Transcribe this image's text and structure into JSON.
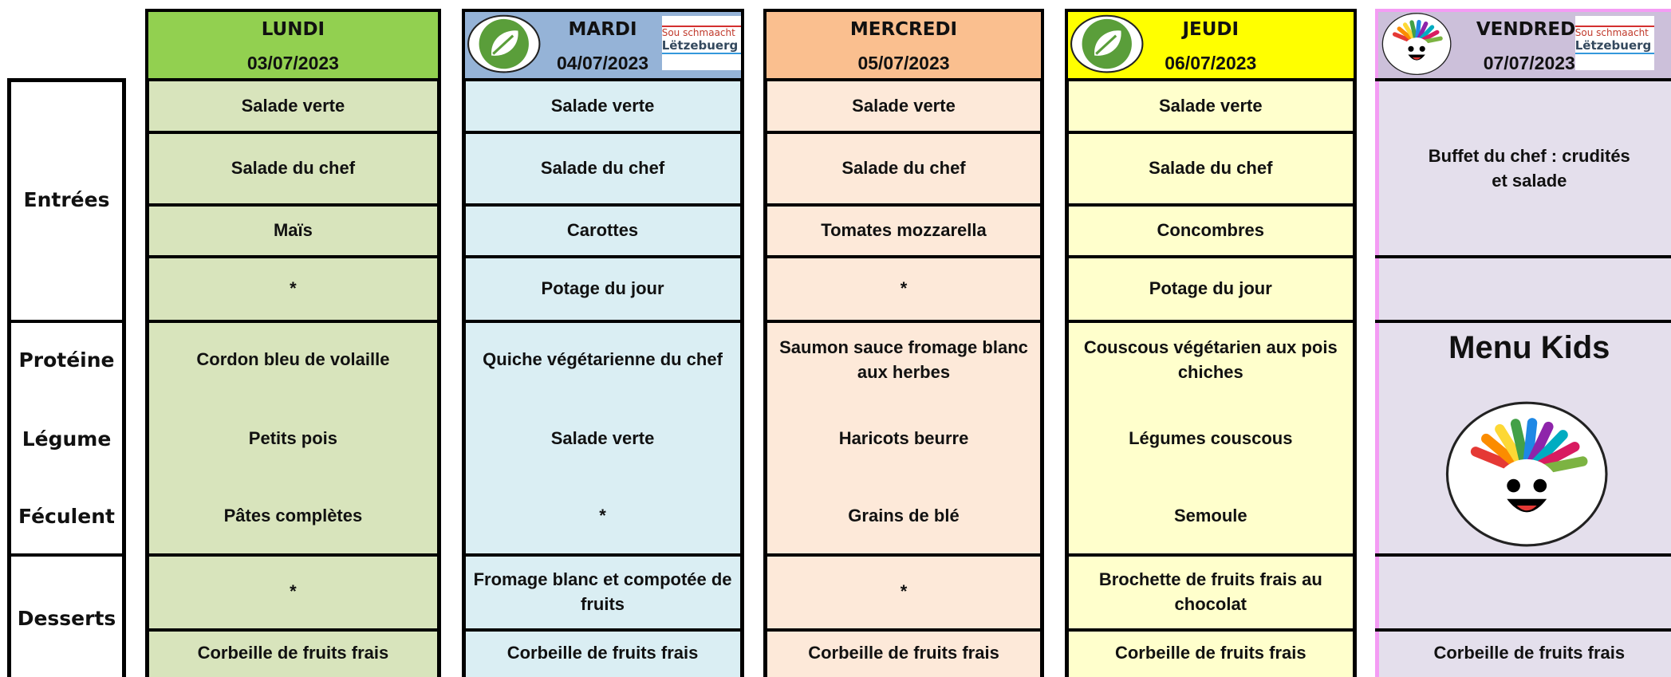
{
  "row_labels": [
    "Entrées",
    "Protéine",
    "Légume",
    "Féculent",
    "Desserts"
  ],
  "logo_text": [
    "Sou schmaacht",
    "Lëtzebuerg"
  ],
  "days": [
    {
      "name": "LUNDI",
      "date": "03/07/2023",
      "header_color": "#92d050",
      "body_color": "#d8e4bc",
      "border_color": "#000000",
      "eco": false,
      "label": false,
      "kids": false,
      "entrees": [
        "Salade verte",
        "Salade du chef",
        "Maïs",
        "*"
      ],
      "plats": [
        "Cordon bleu de volaille",
        "Petits pois",
        "Pâtes complètes"
      ],
      "desserts": [
        "*",
        "Corbeille de fruits frais"
      ]
    },
    {
      "name": "MARDI",
      "date": "04/07/2023",
      "header_color": "#95b3d7",
      "body_color": "#daeef3",
      "border_color": "#000000",
      "eco": true,
      "label": true,
      "kids": false,
      "entrees": [
        "Salade verte",
        "Salade du chef",
        "Carottes",
        "Potage du jour"
      ],
      "plats": [
        "Quiche végétarienne du chef",
        "Salade verte",
        "*"
      ],
      "desserts": [
        "Fromage blanc et compotée de fruits",
        "Corbeille de fruits frais"
      ]
    },
    {
      "name": "MERCREDI",
      "date": "05/07/2023",
      "header_color": "#fabf8f",
      "body_color": "#fde9d9",
      "border_color": "#000000",
      "eco": false,
      "label": false,
      "kids": false,
      "entrees": [
        "Salade verte",
        "Salade du chef",
        "Tomates mozzarella",
        "*"
      ],
      "plats": [
        "Saumon sauce fromage blanc aux herbes",
        "Haricots beurre",
        "Grains de blé"
      ],
      "desserts": [
        "*",
        "Corbeille de fruits frais"
      ]
    },
    {
      "name": "JEUDI",
      "date": "06/07/2023",
      "header_color": "#ffff00",
      "body_color": "#ffffcc",
      "border_color": "#000000",
      "eco": true,
      "label": false,
      "kids": false,
      "entrees": [
        "Salade verte",
        "Salade du chef",
        "Concombres",
        "Potage du jour"
      ],
      "plats": [
        "Couscous végétarien aux pois chiches",
        "Légumes couscous",
        "Semoule"
      ],
      "desserts": [
        "Brochette de fruits frais au chocolat",
        "Corbeille de fruits frais"
      ]
    },
    {
      "name": "VENDREDI",
      "date": "07/07/2023",
      "header_color": "#ccc0da",
      "body_color": "#e4dfec",
      "border_color": "#f49cf4",
      "eco": false,
      "label": true,
      "kids": true,
      "entrees": [
        "Buffet du chef : crudités et salade"
      ],
      "plats": [
        "Menu Kids"
      ],
      "desserts": [
        "Corbeille de fruits frais"
      ]
    }
  ]
}
